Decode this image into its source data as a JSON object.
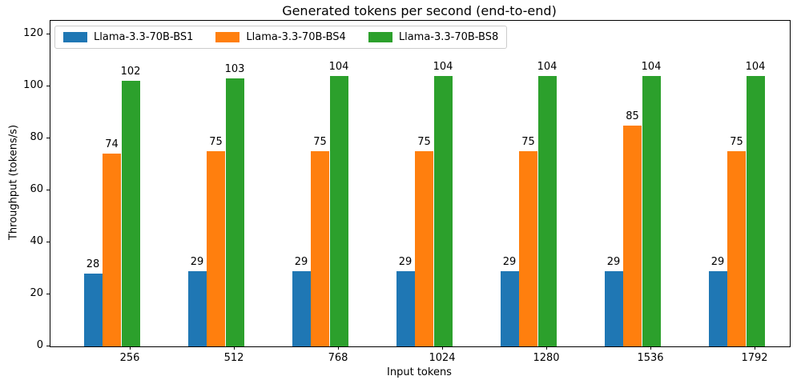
{
  "chart_data": {
    "type": "bar",
    "title": "Generated tokens per second (end-to-end)",
    "xlabel": "Input tokens",
    "ylabel": "Throughput (tokens/s)",
    "categories": [
      "256",
      "512",
      "768",
      "1024",
      "1280",
      "1536",
      "1792"
    ],
    "series": [
      {
        "name": "Llama-3.3-70B-BS1",
        "color": "#1f77b4",
        "values": [
          28,
          29,
          29,
          29,
          29,
          29,
          29
        ]
      },
      {
        "name": "Llama-3.3-70B-BS4",
        "color": "#ff7f0e",
        "values": [
          74,
          75,
          75,
          75,
          75,
          85,
          75
        ]
      },
      {
        "name": "Llama-3.3-70B-BS8",
        "color": "#2ca02c",
        "values": [
          102,
          103,
          104,
          104,
          104,
          104,
          104
        ]
      }
    ],
    "yticks": [
      0,
      20,
      40,
      60,
      80,
      100,
      120
    ],
    "ylim": [
      0,
      125.2
    ],
    "bar_value_labels": true,
    "legend_position": "upper left",
    "grid": false,
    "spine_color": "#000000",
    "background_color": "#ffffff"
  }
}
